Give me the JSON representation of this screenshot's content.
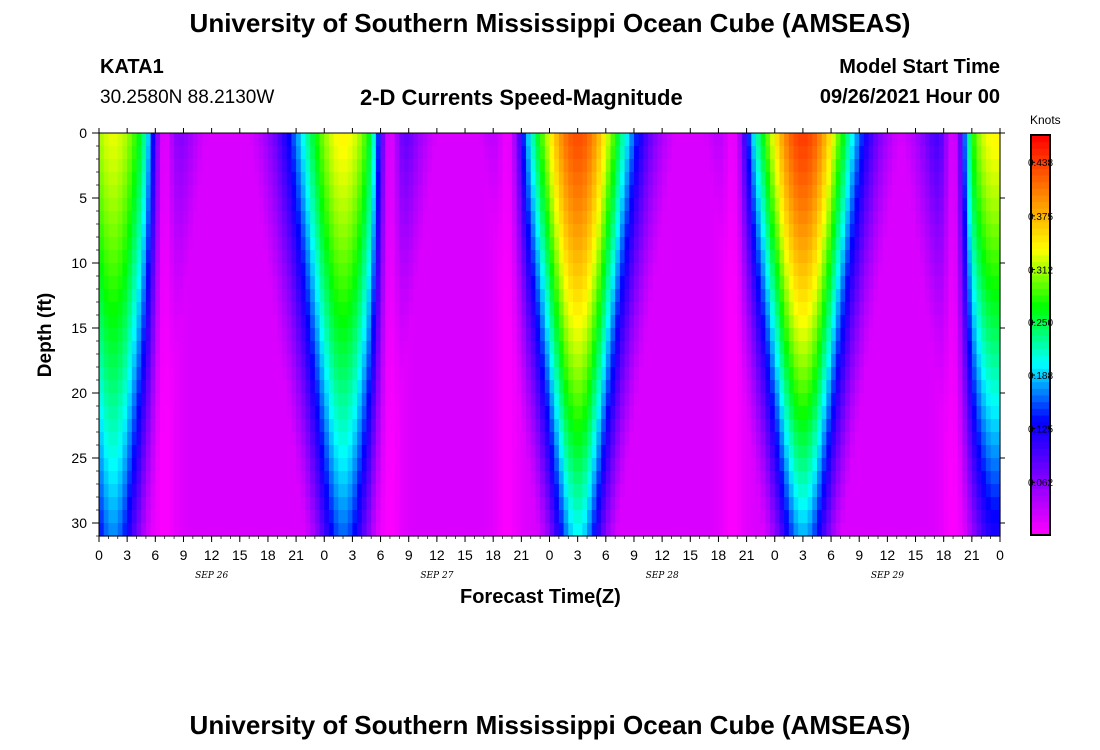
{
  "header": {
    "title": "University of Southern Mississippi Ocean Cube (AMSEAS)",
    "station": "KATA1",
    "coords": "30.2580N  88.2130W",
    "product": "2-D Currents Speed-Magnitude",
    "model_start_label": "Model Start Time",
    "model_start_value": "09/26/2021 Hour 00"
  },
  "footer": {
    "title": "University of Southern Mississippi Ocean Cube (AMSEAS)"
  },
  "chart_data": {
    "type": "heatmap",
    "title": "2-D Currents Speed-Magnitude",
    "xlabel": "Forecast Time(Z)",
    "ylabel": "Depth (ft)",
    "x_unit": "hours since 09/26/2021 00Z",
    "x_range": [
      0,
      96
    ],
    "x_tick_labels": [
      "0",
      "3",
      "6",
      "9",
      "12",
      "15",
      "18",
      "21",
      "0",
      "3",
      "6",
      "9",
      "12",
      "15",
      "18",
      "21",
      "0",
      "3",
      "6",
      "9",
      "12",
      "15",
      "18",
      "21",
      "0",
      "3",
      "6",
      "9",
      "12",
      "15",
      "18",
      "21",
      "0"
    ],
    "date_labels": [
      "SEP 26",
      "SEP 27",
      "SEP 28",
      "SEP 29"
    ],
    "y_range": [
      0,
      31
    ],
    "y_ticks": [
      "0",
      "5",
      "10",
      "15",
      "20",
      "25",
      "30"
    ],
    "colorbar": {
      "unit": "Knots",
      "range": [
        0.0,
        0.47
      ],
      "ticks": [
        "0.438",
        "0.375",
        "0.312",
        "0.250",
        "0.188",
        "0.125",
        "0.062"
      ],
      "colors": [
        "#ff00ff",
        "#8000ff",
        "#0000ff",
        "#00ffff",
        "#00ff00",
        "#ffff00",
        "#ff8000",
        "#ff0000"
      ]
    },
    "tidal_cycles": [
      {
        "peak_hour": 1.5,
        "surface_max": 0.33,
        "bottom_max": 0.17,
        "min_hour": 7.0
      },
      {
        "peak_hour": 26.0,
        "surface_max": 0.34,
        "bottom_max": 0.16,
        "min_hour": 31.0
      },
      {
        "peak_hour": 51.0,
        "surface_max": 0.43,
        "bottom_max": 0.2,
        "min_hour": 43.5
      },
      {
        "peak_hour": 75.0,
        "surface_max": 0.44,
        "bottom_max": 0.18,
        "min_hour": 67.5
      },
      {
        "peak_hour": 95.5,
        "surface_max": 0.34,
        "bottom_max": 0.12,
        "min_hour": 91.0
      }
    ]
  }
}
